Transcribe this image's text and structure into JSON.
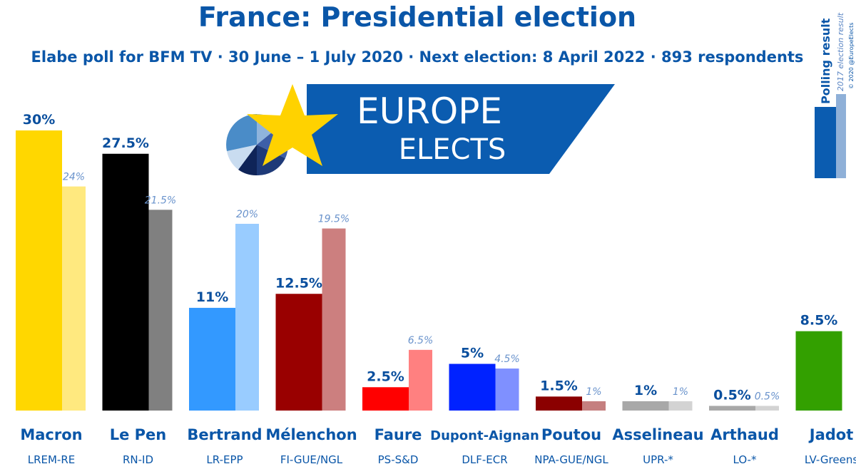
{
  "header": {
    "title": "France: Presidential election",
    "subtitle": "Elabe poll for BFM TV · 30 June – 1 July 2020 · Next election: 8 April 2022 · 893 respondents"
  },
  "logo": {
    "line1": "EUROPE",
    "line2": "ELECTS"
  },
  "legend": {
    "poll_label": "Polling result",
    "prev_label": "2017 election result",
    "copyright": "© 2020 @EuropeElects"
  },
  "colors": {
    "title": "#0a56a8",
    "logo_band": "#0b5cb0"
  },
  "chart_data": {
    "type": "bar",
    "ylim": [
      0,
      30
    ],
    "categories": [
      "Macron",
      "Le Pen",
      "Bertrand",
      "Mélenchon",
      "Faure",
      "Dupont-Aignan",
      "Poutou",
      "Asselineau",
      "Arthaud",
      "Jadot"
    ],
    "parties": [
      "LREM-RE",
      "RN-ID",
      "LR-EPP",
      "FI-GUE/NGL",
      "PS-S&D",
      "DLF-ECR",
      "NPA-GUE/NGL",
      "UPR-*",
      "LO-*",
      "LV-Greens"
    ],
    "series": [
      {
        "name": "Polling result",
        "values": [
          30,
          27.5,
          11,
          12.5,
          2.5,
          5,
          1.5,
          1,
          0.5,
          8.5
        ],
        "labels": [
          "30%",
          "27.5%",
          "11%",
          "12.5%",
          "2.5%",
          "5%",
          "1.5%",
          "1%",
          "0.5%",
          "8.5%"
        ],
        "colors": [
          "#FFD700",
          "#000000",
          "#3399FF",
          "#990000",
          "#FF0000",
          "#0022FF",
          "#8B0000",
          "#A8A8A8",
          "#A8A8A8",
          "#33A000"
        ]
      },
      {
        "name": "2017 election result",
        "values": [
          24,
          21.5,
          20,
          19.5,
          6.5,
          4.5,
          1,
          1,
          0.5,
          null
        ],
        "labels": [
          "24%",
          "21.5%",
          "20%",
          "19.5%",
          "6.5%",
          "4.5%",
          "1%",
          "1%",
          "0.5%",
          ""
        ],
        "colors": [
          "#FFE97F",
          "#808080",
          "#99CCFF",
          "#CC7F7F",
          "#FF8080",
          "#7F90FF",
          "#C57F7F",
          "#D3D3D3",
          "#D3D3D3",
          "#99CF7F"
        ]
      }
    ]
  }
}
